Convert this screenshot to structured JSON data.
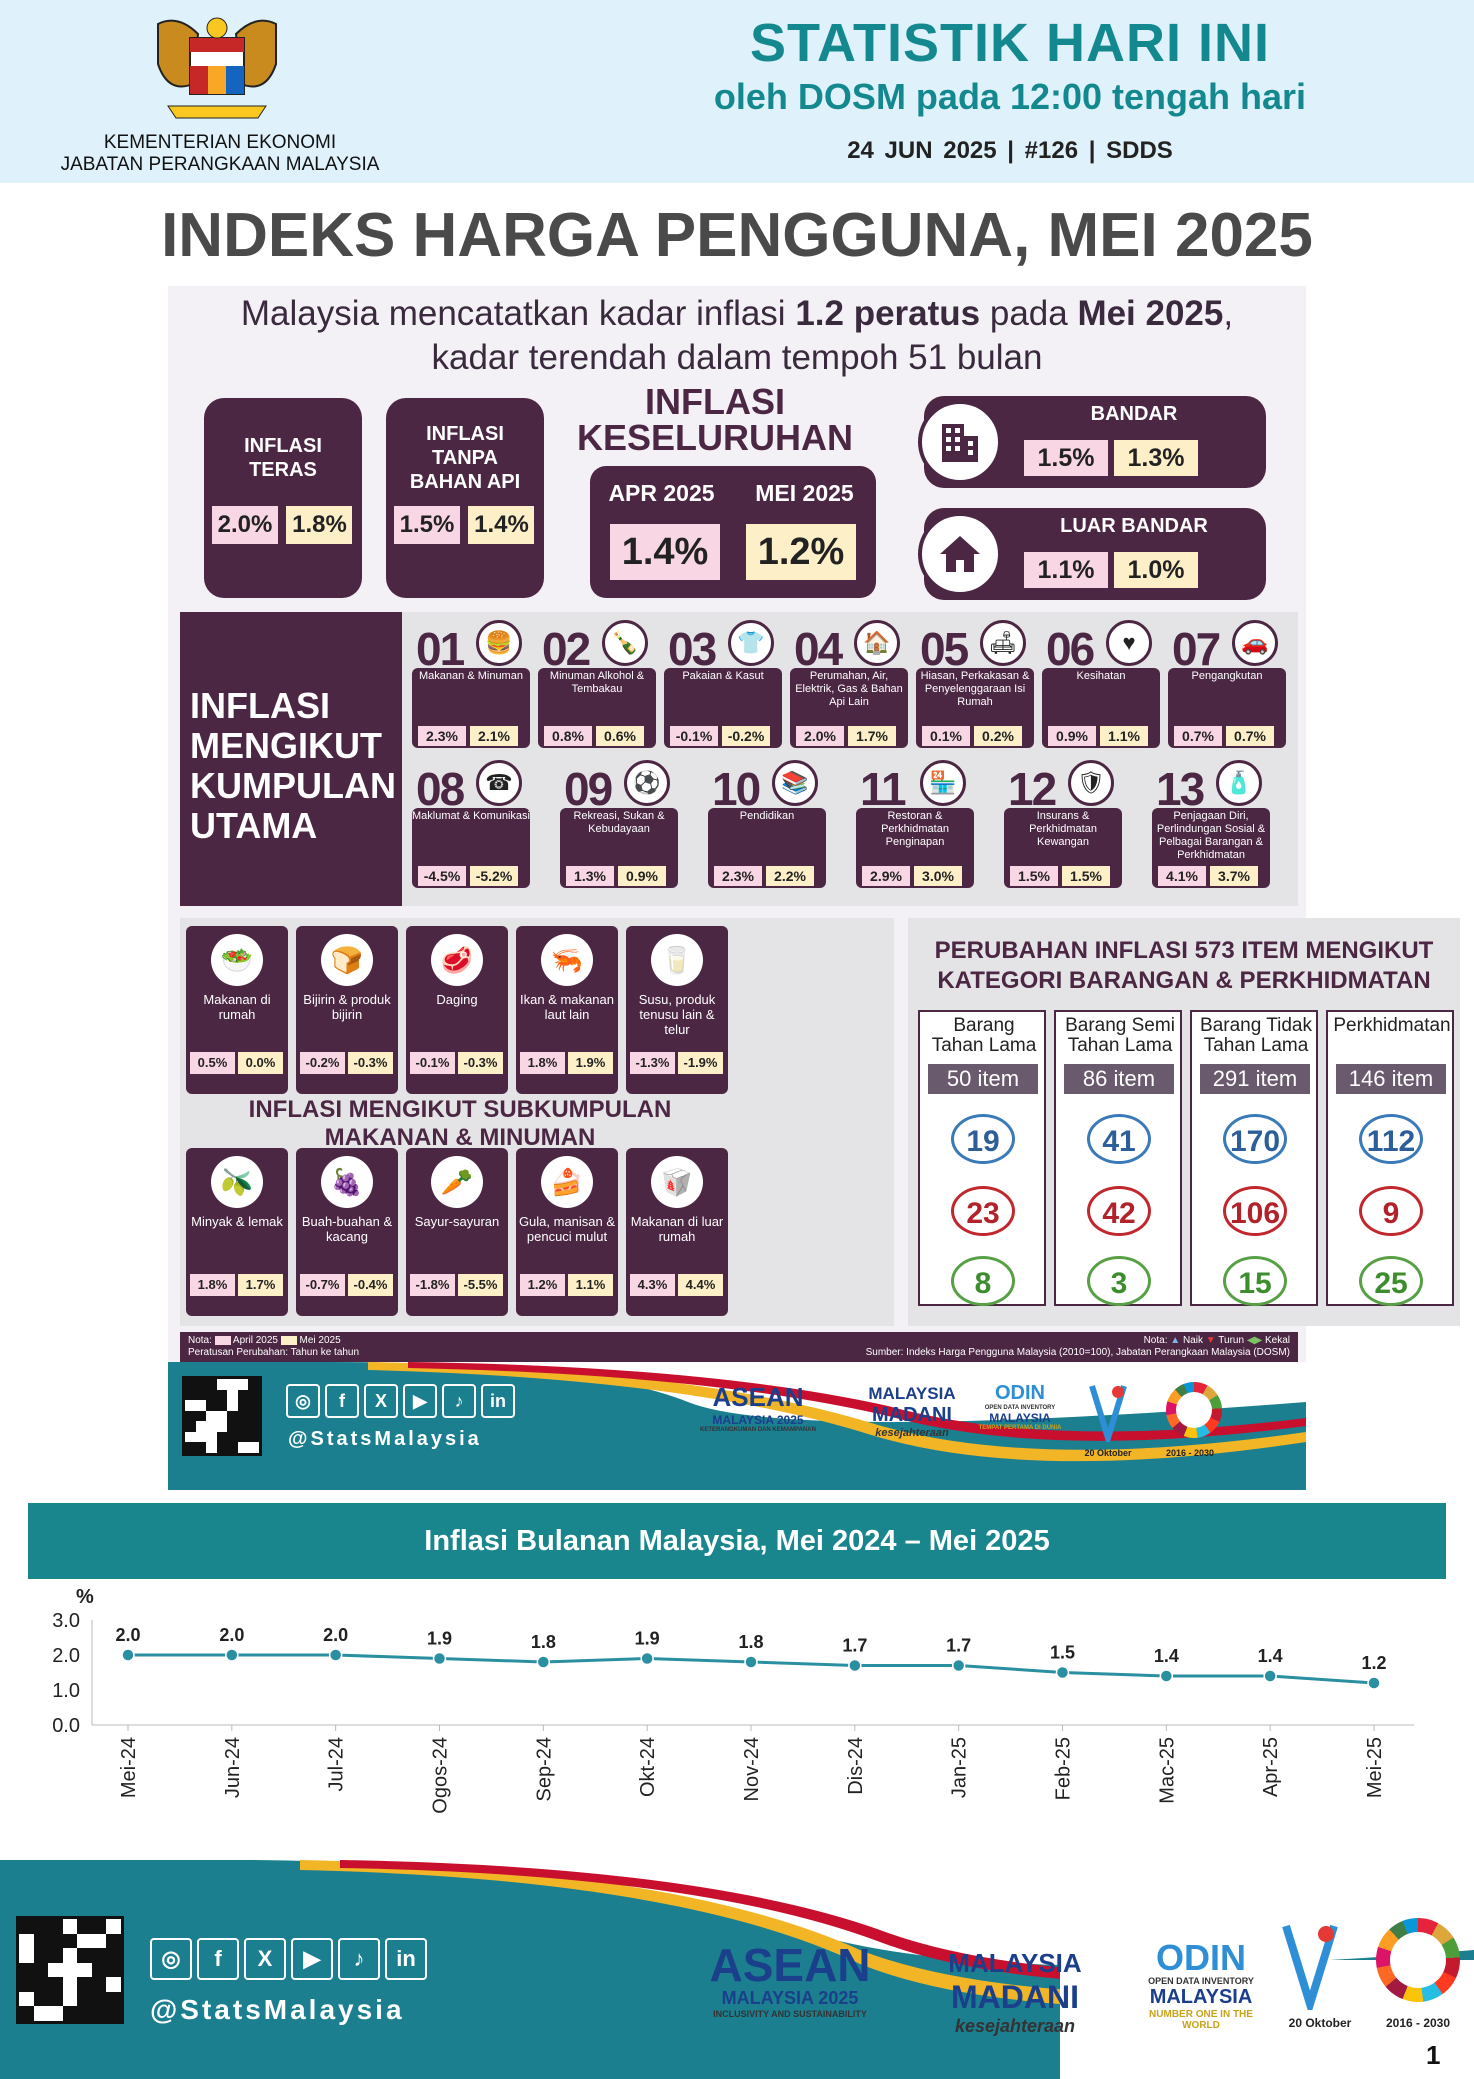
{
  "header": {
    "ministry": [
      "KEMENTERIAN EKONOMI",
      "JABATAN PERANGKAAN MALAYSIA"
    ],
    "title": "STATISTIK HARI INI",
    "subtitle": "oleh DOSM pada 12:00 tengah hari",
    "meta": "24 JUN 2025 | #126 | SDDS"
  },
  "main_title": "INDEKS HARGA PENGGUNA, MEI 2025",
  "headline": {
    "a": "Malaysia mencatatkan kadar inflasi ",
    "b": "1.2 peratus",
    "c": " pada ",
    "d": "Mei 2025",
    "e": ",",
    "line2": "kadar terendah dalam tempoh 51 bulan"
  },
  "teras": {
    "label": "INFLASI TERAS",
    "apr": "2.0%",
    "mei": "1.8%"
  },
  "tanpa": {
    "label": "INFLASI TANPA BAHAN API",
    "apr": "1.5%",
    "mei": "1.4%"
  },
  "keseluruhan": {
    "title1": "INFLASI",
    "title2": "KESELURUHAN",
    "apr_label": "APR 2025",
    "mei_label": "MEI 2025",
    "apr": "1.4%",
    "mei": "1.2%"
  },
  "bandar": {
    "label": "BANDAR",
    "apr": "1.5%",
    "mei": "1.3%"
  },
  "luar": {
    "label": "LUAR BANDAR",
    "apr": "1.1%",
    "mei": "1.0%"
  },
  "kumpulan_title": [
    "INFLASI",
    "MENGIKUT",
    "KUMPULAN",
    "UTAMA"
  ],
  "groups": [
    {
      "num": "01",
      "label": "Makanan & Minuman",
      "apr": "2.3%",
      "mei": "2.1%",
      "icon": "food-icon"
    },
    {
      "num": "02",
      "label": "Minuman Alkohol & Tembakau",
      "apr": "0.8%",
      "mei": "0.6%",
      "icon": "bottle-icon"
    },
    {
      "num": "03",
      "label": "Pakaian & Kasut",
      "apr": "-0.1%",
      "mei": "-0.2%",
      "icon": "shirt-icon"
    },
    {
      "num": "04",
      "label": "Perumahan, Air, Elektrik, Gas & Bahan Api Lain",
      "apr": "2.0%",
      "mei": "1.7%",
      "icon": "house-icon"
    },
    {
      "num": "05",
      "label": "Hiasan, Perkakasan & Penyelenggaraan Isi Rumah",
      "apr": "0.1%",
      "mei": "0.2%",
      "icon": "furniture-icon"
    },
    {
      "num": "06",
      "label": "Kesihatan",
      "apr": "0.9%",
      "mei": "1.1%",
      "icon": "heart-icon"
    },
    {
      "num": "07",
      "label": "Pengangkutan",
      "apr": "0.7%",
      "mei": "0.7%",
      "icon": "car-icon"
    },
    {
      "num": "08",
      "label": "Maklumat & Komunikasi",
      "apr": "-4.5%",
      "mei": "-5.2%",
      "icon": "phone-icon"
    },
    {
      "num": "09",
      "label": "Rekreasi, Sukan & Kebudayaan",
      "apr": "1.3%",
      "mei": "0.9%",
      "icon": "ball-icon"
    },
    {
      "num": "10",
      "label": "Pendidikan",
      "apr": "2.3%",
      "mei": "2.2%",
      "icon": "book-icon"
    },
    {
      "num": "11",
      "label": "Restoran & Perkhidmatan Penginapan",
      "apr": "2.9%",
      "mei": "3.0%",
      "icon": "shop-icon"
    },
    {
      "num": "12",
      "label": "Insurans & Perkhidmatan Kewangan",
      "apr": "1.5%",
      "mei": "1.5%",
      "icon": "shield-icon"
    },
    {
      "num": "13",
      "label": "Penjagaan Diri, Perlindungan Sosial & Pelbagai Barangan & Perkhidmatan",
      "apr": "4.1%",
      "mei": "3.7%",
      "icon": "care-icon"
    }
  ],
  "sub_title": [
    "INFLASI MENGIKUT SUBKUMPULAN",
    "MAKANAN & MINUMAN"
  ],
  "subgroups": [
    {
      "label": "Makanan di rumah",
      "apr": "0.5%",
      "mei": "0.0%",
      "icon": "bowl-icon"
    },
    {
      "label": "Bijirin & produk bijirin",
      "apr": "-0.2%",
      "mei": "-0.3%",
      "icon": "bread-icon"
    },
    {
      "label": "Daging",
      "apr": "-0.1%",
      "mei": "-0.3%",
      "icon": "meat-icon"
    },
    {
      "label": "Ikan & makanan laut lain",
      "apr": "1.8%",
      "mei": "1.9%",
      "icon": "seafood-icon"
    },
    {
      "label": "Susu, produk tenusu lain & telur",
      "apr": "-1.3%",
      "mei": "-1.9%",
      "icon": "milk-icon"
    },
    {
      "label": "Minyak & lemak",
      "apr": "1.8%",
      "mei": "1.7%",
      "icon": "oil-icon"
    },
    {
      "label": "Buah-buahan & kacang",
      "apr": "-0.7%",
      "mei": "-0.4%",
      "icon": "fruit-icon"
    },
    {
      "label": "Sayur-sayuran",
      "apr": "-1.8%",
      "mei": "-5.5%",
      "icon": "vegetable-icon"
    },
    {
      "label": "Gula, manisan & pencuci mulut",
      "apr": "1.2%",
      "mei": "1.1%",
      "icon": "cake-icon"
    },
    {
      "label": "Makanan di luar rumah",
      "apr": "4.3%",
      "mei": "4.4%",
      "icon": "takeaway-icon"
    }
  ],
  "perubahan": {
    "title": [
      "PERUBAHAN INFLASI 573 ITEM MENGIKUT",
      "KATEGORI BARANGAN & PERKHIDMATAN"
    ],
    "cols": [
      {
        "label1": "Barang",
        "label2": "Tahan Lama",
        "items": "50 item",
        "naik": "19",
        "turun": "23",
        "kekal": "8"
      },
      {
        "label1": "Barang Semi",
        "label2": "Tahan Lama",
        "items": "86 item",
        "naik": "41",
        "turun": "42",
        "kekal": "3"
      },
      {
        "label1": "Barang Tidak",
        "label2": "Tahan Lama",
        "items": "291 item",
        "naik": "170",
        "turun": "106",
        "kekal": "15"
      },
      {
        "label1": "Perkhidmatan",
        "label2": "",
        "items": "146 item",
        "naik": "112",
        "turun": "9",
        "kekal": "25"
      }
    ]
  },
  "nota": {
    "left1": "Nota:",
    "apr": "April 2025",
    "mei": "Mei 2025",
    "left2": "Peratusan Perubahan: Tahun ke tahun",
    "right1a": "Nota:",
    "naik": "Naik",
    "turun": "Turun",
    "kekal": "Kekal",
    "right2": "Sumber: Indeks Harga Pengguna Malaysia (2010=100), Jabatan Perangkaan Malaysia (DOSM)"
  },
  "footer": {
    "handle": "@StatsMalaysia",
    "asean1": "ASEAN",
    "asean2": "MALAYSIA 2025",
    "asean3_small": "KETERANGKUMAN DAN KEMAMPANAN",
    "asean3": "INCLUSIVITY AND SUSTAINABILITY",
    "madani1": "MALAYSIA",
    "madani2": "MADANI",
    "madani3": "kesejahteraan",
    "odin1": "ODIN",
    "odin2": "OPEN DATA INVENTORY",
    "odin3": "MALAYSIA",
    "odin4_small": "TEMPAT PERTAMA DI DUNIA",
    "odin4": "NUMBER ONE IN THE WORLD",
    "stat_day": "20 Oktober",
    "sdg_years": "2016 - 2030"
  },
  "chart_band_title": "Inflasi Bulanan Malaysia, Mei 2024 – Mei 2025",
  "chart_data": {
    "type": "line",
    "title": "Inflasi Bulanan Malaysia, Mei 2024 – Mei 2025",
    "ylabel": "%",
    "ylim": [
      0,
      3
    ],
    "yticks": [
      "0.0",
      "1.0",
      "2.0",
      "3.0"
    ],
    "categories": [
      "Mei-24",
      "Jun-24",
      "Jul-24",
      "Ogos-24",
      "Sep-24",
      "Okt-24",
      "Nov-24",
      "Dis-24",
      "Jan-25",
      "Feb-25",
      "Mac-25",
      "Apr-25",
      "Mei-25"
    ],
    "values": [
      2.0,
      2.0,
      2.0,
      1.9,
      1.8,
      1.9,
      1.8,
      1.7,
      1.7,
      1.5,
      1.4,
      1.4,
      1.2
    ],
    "labels": [
      "2.0",
      "2.0",
      "2.0",
      "1.9",
      "1.8",
      "1.9",
      "1.8",
      "1.7",
      "1.7",
      "1.5",
      "1.4",
      "1.4",
      "1.2"
    ],
    "color": "#2b8fa2",
    "grid": false
  },
  "page_number": "1",
  "colors": {
    "plum": "#4c2743",
    "teal": "#13898f",
    "apr": "#f9d6e3",
    "mei": "#fdf0c8"
  }
}
